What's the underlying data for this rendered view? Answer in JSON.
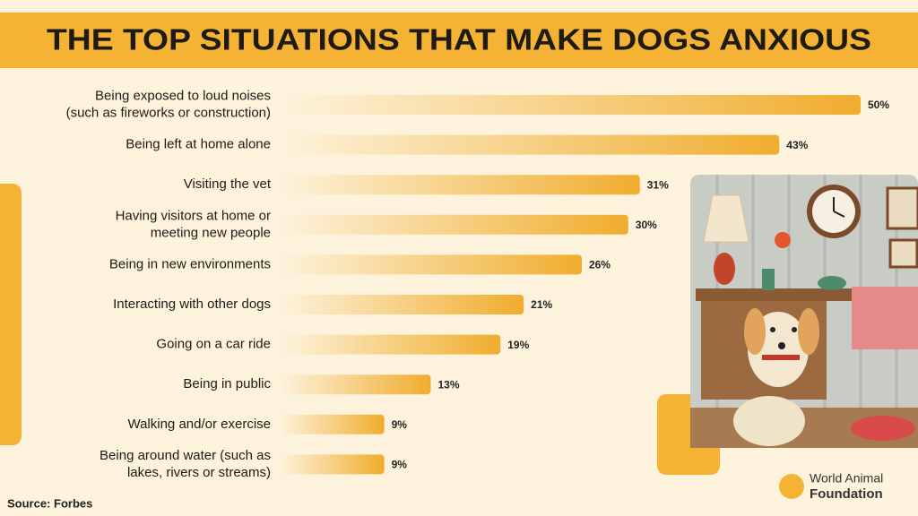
{
  "chart_data": {
    "type": "bar",
    "orientation": "horizontal",
    "title": "THE TOP SITUATIONS THAT MAKE DOGS ANXIOUS",
    "categories": [
      "Being exposed to loud noises\n(such as fireworks or construction)",
      "Being left at home alone",
      "Visiting the vet",
      "Having visitors at home or\nmeeting new people",
      "Being in new environments",
      "Interacting with other dogs",
      "Going on a car ride",
      "Being in public",
      "Walking and/or exercise",
      "Being around water (such as\nlakes, rivers or streams)"
    ],
    "values": [
      50,
      43,
      31,
      30,
      26,
      21,
      19,
      13,
      9,
      9
    ],
    "value_labels": [
      "50%",
      "43%",
      "31%",
      "30%",
      "26%",
      "21%",
      "19%",
      "13%",
      "9%",
      "9%"
    ],
    "color": "#f0ad2e"
  },
  "source": "Source: Forbes",
  "logo": {
    "line1": "World Animal",
    "line2": "Foundation"
  }
}
